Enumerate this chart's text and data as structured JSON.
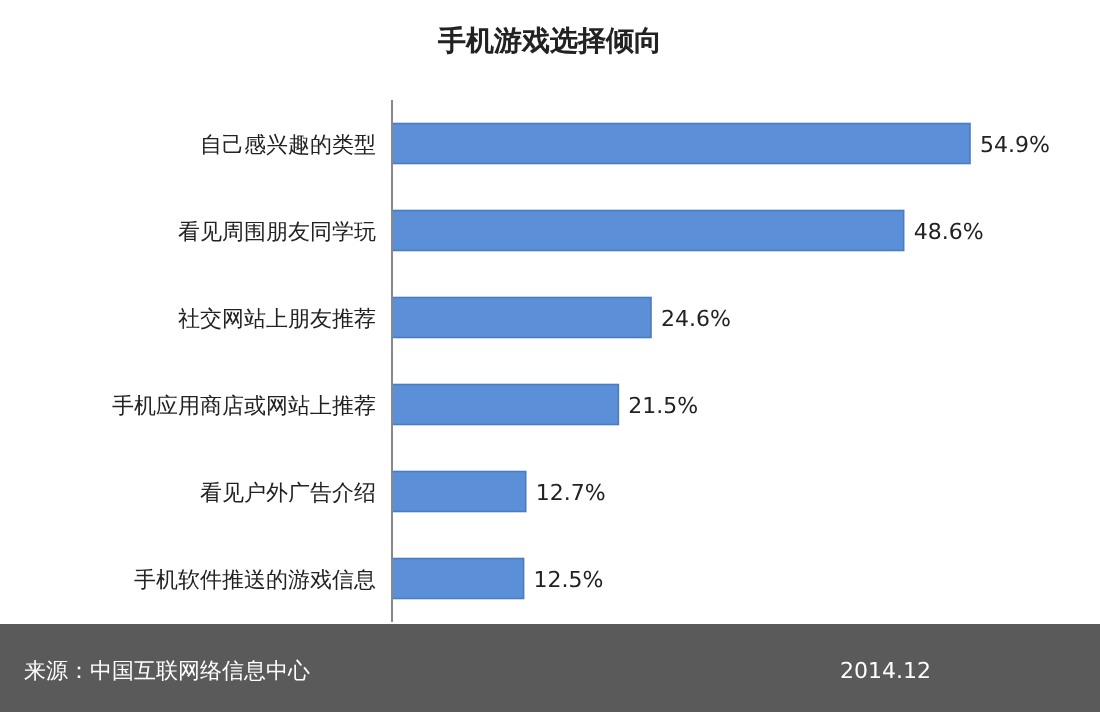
{
  "chart_data": {
    "type": "bar",
    "orientation": "horizontal",
    "title": "手机游戏选择倾向",
    "categories": [
      "自己感兴趣的类型",
      "看见周围朋友同学玩",
      "社交网站上朋友推荐",
      "手机应用商店或网站上推荐",
      "看见户外广告介绍",
      "手机软件推送的游戏信息"
    ],
    "values": [
      54.9,
      48.6,
      24.6,
      21.5,
      12.7,
      12.5
    ],
    "value_labels": [
      "54.9%",
      "48.6%",
      "24.6%",
      "21.5%",
      "12.7%",
      "12.5%"
    ],
    "color": "#5b8fd8",
    "annotations": [
      "来源：中国互联网络信息中心",
      "2014.12"
    ]
  }
}
